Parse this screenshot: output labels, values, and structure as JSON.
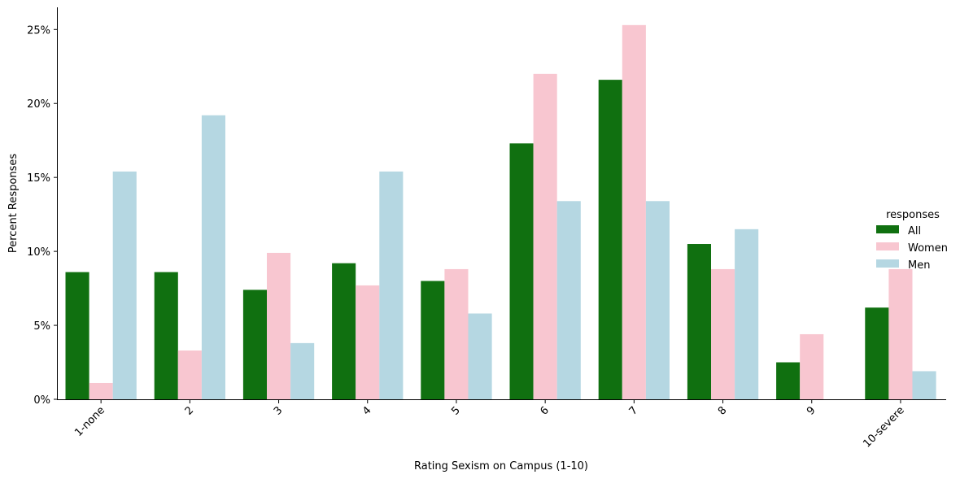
{
  "chart_data": {
    "type": "bar",
    "title": "",
    "xlabel": "Rating Sexism on Campus (1-10)",
    "ylabel": "Percent Responses",
    "categories": [
      "1-none",
      "2",
      "3",
      "4",
      "5",
      "6",
      "7",
      "8",
      "9",
      "10-severe"
    ],
    "ylim": [
      0,
      0.265
    ],
    "yticks": [
      0,
      0.05,
      0.1,
      0.15,
      0.2,
      0.25
    ],
    "ytick_labels": [
      "0%",
      "5%",
      "10%",
      "15%",
      "20%",
      "25%"
    ],
    "legend": {
      "title": "responses",
      "placement": "center-right"
    },
    "series": [
      {
        "name": "All",
        "color": "#107010",
        "values": [
          0.086,
          0.086,
          0.074,
          0.092,
          0.08,
          0.173,
          0.216,
          0.105,
          0.025,
          0.062
        ]
      },
      {
        "name": "Women",
        "color": "#f8c6d0",
        "values": [
          0.011,
          0.033,
          0.099,
          0.077,
          0.088,
          0.22,
          0.253,
          0.088,
          0.044,
          0.088
        ]
      },
      {
        "name": "Men",
        "color": "#b5d7e2",
        "values": [
          0.154,
          0.192,
          0.038,
          0.154,
          0.058,
          0.134,
          0.134,
          0.115,
          0.0,
          0.019
        ]
      }
    ]
  }
}
